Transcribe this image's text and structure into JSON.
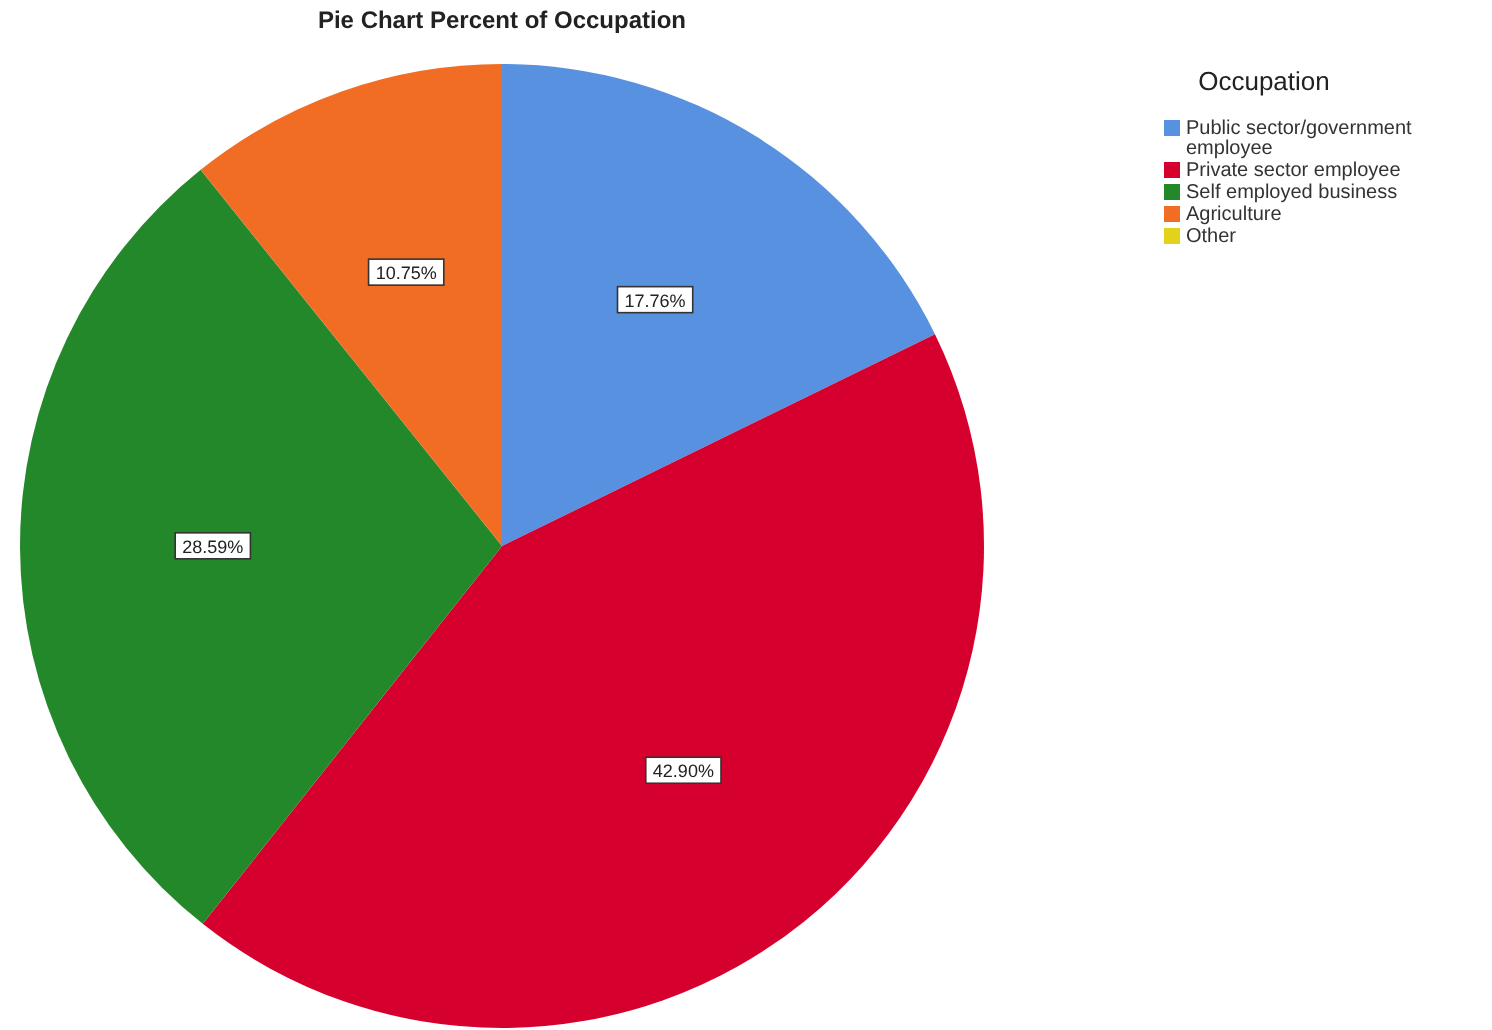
{
  "chart_data": {
    "type": "pie",
    "title": "Pie Chart Percent of Occupation",
    "legend_title": "Occupation",
    "legend": "top right",
    "categories": [
      "Public sector/government employee",
      "Private sector employee",
      "Self employed business",
      "Agriculture",
      "Other"
    ],
    "values": [
      17.76,
      42.9,
      28.59,
      10.75,
      0
    ],
    "colors": [
      "#5891e0",
      "#d6002e",
      "#22882a",
      "#f26d24",
      "#e0d319"
    ],
    "value_labels": [
      "17.76%",
      "42.90%",
      "28.59%",
      "10.75%",
      null
    ]
  }
}
